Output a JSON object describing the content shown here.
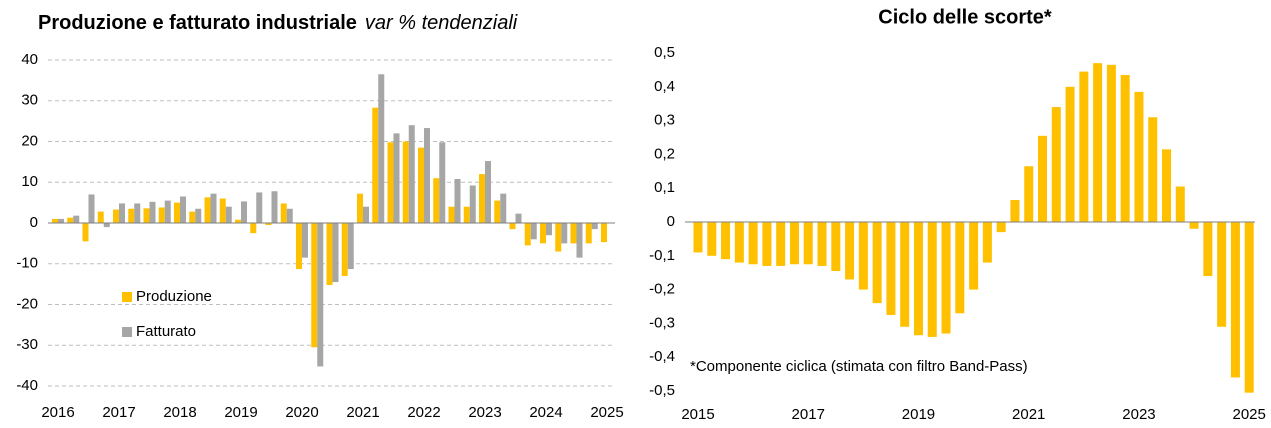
{
  "chart_data": [
    {
      "type": "bar",
      "title": "Produzione e fatturato industriale",
      "subtitle": "var % tendenziali",
      "categories": [
        "2016",
        null,
        null,
        null,
        "2017",
        null,
        null,
        null,
        "2018",
        null,
        null,
        null,
        "2019",
        null,
        null,
        null,
        "2020",
        null,
        null,
        null,
        "2021",
        null,
        null,
        null,
        "2022",
        null,
        null,
        null,
        "2023",
        null,
        null,
        null,
        "2024",
        null,
        null,
        null,
        "2025"
      ],
      "series": [
        {
          "name": "Produzione",
          "color": "#FFC000",
          "values": [
            1,
            1.3,
            -4.5,
            2.8,
            3.3,
            3.5,
            3.6,
            3.8,
            5,
            2.8,
            6.3,
            6,
            0.8,
            -2.5,
            -0.5,
            4.8,
            -11.3,
            -30.5,
            -15.2,
            -13,
            7.2,
            28.3,
            19.8,
            20,
            18.5,
            11,
            4,
            4,
            12,
            5.5,
            -1.5,
            -5.5,
            -5,
            -7,
            -5,
            -5,
            -4.7
          ]
        },
        {
          "name": "Fatturato",
          "color": "#A6A6A6",
          "values": [
            1,
            1.8,
            7,
            -1,
            4.8,
            4.8,
            5.2,
            5.5,
            6.5,
            3.5,
            7.2,
            4,
            5.3,
            7.5,
            7.8,
            3.5,
            -8.5,
            -35.2,
            -14.5,
            -11.3,
            4,
            36.5,
            22,
            24,
            23.3,
            19.8,
            10.8,
            9.2,
            15.2,
            7.2,
            2.3,
            -4,
            -3,
            -5,
            -8.5,
            -1.5,
            null
          ]
        }
      ],
      "ylim": [
        -40,
        40
      ],
      "yticks": [
        -40,
        -30,
        -20,
        -10,
        0,
        10,
        20,
        30,
        40
      ],
      "grid": true,
      "legend": "lower-left"
    },
    {
      "type": "bar",
      "title": "Ciclo delle scorte*",
      "annotation": "*Componente ciclica (stimata con filtro Band-Pass)",
      "categories": [
        "2015",
        null,
        null,
        null,
        null,
        null,
        null,
        null,
        "2017",
        null,
        null,
        null,
        null,
        null,
        null,
        null,
        "2019",
        null,
        null,
        null,
        null,
        null,
        null,
        null,
        "2021",
        null,
        null,
        null,
        null,
        null,
        null,
        null,
        "2023",
        null,
        null,
        null,
        null,
        null,
        null,
        null,
        "2025"
      ],
      "series": [
        {
          "name": null,
          "color": "#FFC000",
          "values": [
            -0.09,
            -0.1,
            -0.11,
            -0.12,
            -0.125,
            -0.13,
            -0.13,
            -0.125,
            -0.125,
            -0.13,
            -0.145,
            -0.17,
            -0.2,
            -0.24,
            -0.275,
            -0.31,
            -0.335,
            -0.34,
            -0.33,
            -0.27,
            -0.2,
            -0.12,
            -0.03,
            0.065,
            0.165,
            0.255,
            0.34,
            0.4,
            0.445,
            0.47,
            0.465,
            0.435,
            0.385,
            0.31,
            0.215,
            0.105,
            -0.02,
            -0.16,
            -0.31,
            -0.46,
            -0.505
          ]
        }
      ],
      "ylim": [
        -0.5,
        0.5
      ],
      "yticks": [
        {
          "value": -0.5,
          "label": "-0,5"
        },
        {
          "value": -0.4,
          "label": "-0,4"
        },
        {
          "value": -0.3,
          "label": "-0,3"
        },
        {
          "value": -0.2,
          "label": "-0,2"
        },
        {
          "value": -0.1,
          "label": "-0,1"
        },
        0,
        {
          "value": 0.1,
          "label": "0,1"
        },
        {
          "value": 0.2,
          "label": "0,2"
        },
        {
          "value": 0.3,
          "label": "0,3"
        },
        {
          "value": 0.4,
          "label": "0,4"
        },
        {
          "value": 0.5,
          "label": "0,5"
        }
      ],
      "grid": false
    }
  ]
}
